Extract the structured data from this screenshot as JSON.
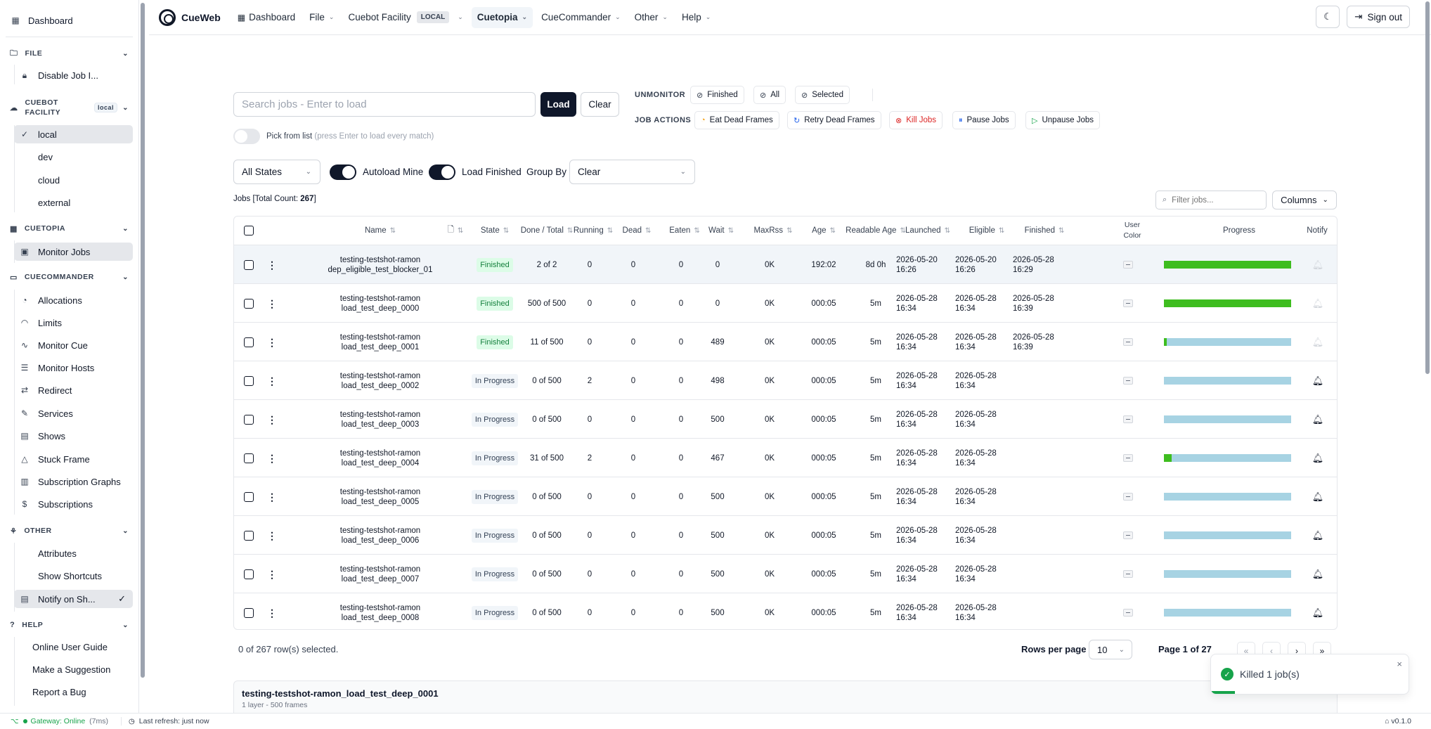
{
  "app": {
    "name": "CueWeb",
    "version": "v0.1.0"
  },
  "sidebar": {
    "dashboard": "Dashboard",
    "file": {
      "label": "FILE",
      "items": [
        "Disable Job I..."
      ]
    },
    "facility": {
      "label_line1": "CUEBOT",
      "label_line2": "FACILITY",
      "badge": "local",
      "items": [
        "local",
        "dev",
        "cloud",
        "external"
      ]
    },
    "cuetopia": {
      "label": "CUETOPIA",
      "items": [
        "Monitor Jobs"
      ]
    },
    "cuecommander": {
      "label": "CUECOMMANDER",
      "items": [
        "Allocations",
        "Limits",
        "Monitor Cue",
        "Monitor Hosts",
        "Redirect",
        "Services",
        "Shows",
        "Stuck Frame",
        "Subscription Graphs",
        "Subscriptions"
      ]
    },
    "other": {
      "label": "OTHER",
      "items": [
        "Attributes",
        "Show Shortcuts",
        "Notify on Sh..."
      ]
    },
    "help": {
      "label": "HELP",
      "items": [
        "Online User Guide",
        "Make a Suggestion",
        "Report a Bug"
      ]
    }
  },
  "topbar": {
    "dashboard": "Dashboard",
    "file": "File",
    "facility": "Cuebot Facility",
    "facility_badge": "LOCAL",
    "cuetopia": "Cuetopia",
    "cuecommander": "CueCommander",
    "other": "Other",
    "help": "Help",
    "sign_out": "Sign out"
  },
  "controls": {
    "search_placeholder": "Search jobs - Enter to load",
    "load": "Load",
    "clear": "Clear",
    "unmonitor_label": "UNMONITOR",
    "unmonitor": [
      "Finished",
      "All",
      "Selected"
    ],
    "job_actions_label": "JOB ACTIONS",
    "job_actions": [
      "Eat Dead Frames",
      "Retry Dead Frames",
      "Kill Jobs",
      "Pause Jobs",
      "Unpause Jobs"
    ],
    "pick_from_list": "Pick from list",
    "pick_hint": "(press Enter to load every match)",
    "states": "All States",
    "autoload_mine": "Autoload Mine",
    "load_finished": "Load Finished",
    "group_by_label": "Group By",
    "group_by": "Clear",
    "jobs_prefix": "Jobs [Total Count: ",
    "jobs_count": "267",
    "jobs_suffix": "]",
    "filter_placeholder": "Filter jobs...",
    "columns": "Columns"
  },
  "table": {
    "headers": {
      "name": "Name",
      "state": "State",
      "done_total": "Done / Total",
      "running": "Running",
      "dead": "Dead",
      "eaten": "Eaten",
      "wait": "Wait",
      "maxrss": "MaxRss",
      "age": "Age",
      "readable_age": "Readable Age",
      "launched": "Launched",
      "eligible": "Eligible",
      "finished": "Finished",
      "user_color_1": "User",
      "user_color_2": "Color",
      "progress": "Progress",
      "notify": "Notify"
    },
    "rows": [
      {
        "name1": "testing-testshot-ramon",
        "name2": "dep_eligible_test_blocker_01",
        "state": "Finished",
        "done": "2 of 2",
        "running": "0",
        "dead": "0",
        "eaten": "0",
        "wait": "0",
        "maxrss": "0K",
        "age": "192:02",
        "rage": "8d 0h",
        "launched1": "2026-05-20",
        "launched2": "16:26",
        "eligible1": "2026-05-20",
        "eligible2": "16:26",
        "finished1": "2026-05-28",
        "finished2": "16:29",
        "progress": 1.0
      },
      {
        "name1": "testing-testshot-ramon",
        "name2": "load_test_deep_0000",
        "state": "Finished",
        "done": "500 of 500",
        "running": "0",
        "dead": "0",
        "eaten": "0",
        "wait": "0",
        "maxrss": "0K",
        "age": "000:05",
        "rage": "5m",
        "launched1": "2026-05-28",
        "launched2": "16:34",
        "eligible1": "2026-05-28",
        "eligible2": "16:34",
        "finished1": "2026-05-28",
        "finished2": "16:39",
        "progress": 1.0
      },
      {
        "name1": "testing-testshot-ramon",
        "name2": "load_test_deep_0001",
        "state": "Finished",
        "done": "11 of 500",
        "running": "0",
        "dead": "0",
        "eaten": "0",
        "wait": "489",
        "maxrss": "0K",
        "age": "000:05",
        "rage": "5m",
        "launched1": "2026-05-28",
        "launched2": "16:34",
        "eligible1": "2026-05-28",
        "eligible2": "16:34",
        "finished1": "2026-05-28",
        "finished2": "16:39",
        "progress": 0.022
      },
      {
        "name1": "testing-testshot-ramon",
        "name2": "load_test_deep_0002",
        "state": "In Progress",
        "done": "0 of 500",
        "running": "2",
        "dead": "0",
        "eaten": "0",
        "wait": "498",
        "maxrss": "0K",
        "age": "000:05",
        "rage": "5m",
        "launched1": "2026-05-28",
        "launched2": "16:34",
        "eligible1": "2026-05-28",
        "eligible2": "16:34",
        "finished1": "",
        "finished2": "",
        "progress": 0.0
      },
      {
        "name1": "testing-testshot-ramon",
        "name2": "load_test_deep_0003",
        "state": "In Progress",
        "done": "0 of 500",
        "running": "0",
        "dead": "0",
        "eaten": "0",
        "wait": "500",
        "maxrss": "0K",
        "age": "000:05",
        "rage": "5m",
        "launched1": "2026-05-28",
        "launched2": "16:34",
        "eligible1": "2026-05-28",
        "eligible2": "16:34",
        "finished1": "",
        "finished2": "",
        "progress": 0.0
      },
      {
        "name1": "testing-testshot-ramon",
        "name2": "load_test_deep_0004",
        "state": "In Progress",
        "done": "31 of 500",
        "running": "2",
        "dead": "0",
        "eaten": "0",
        "wait": "467",
        "maxrss": "0K",
        "age": "000:05",
        "rage": "5m",
        "launched1": "2026-05-28",
        "launched2": "16:34",
        "eligible1": "2026-05-28",
        "eligible2": "16:34",
        "finished1": "",
        "finished2": "",
        "progress": 0.062
      },
      {
        "name1": "testing-testshot-ramon",
        "name2": "load_test_deep_0005",
        "state": "In Progress",
        "done": "0 of 500",
        "running": "0",
        "dead": "0",
        "eaten": "0",
        "wait": "500",
        "maxrss": "0K",
        "age": "000:05",
        "rage": "5m",
        "launched1": "2026-05-28",
        "launched2": "16:34",
        "eligible1": "2026-05-28",
        "eligible2": "16:34",
        "finished1": "",
        "finished2": "",
        "progress": 0.0
      },
      {
        "name1": "testing-testshot-ramon",
        "name2": "load_test_deep_0006",
        "state": "In Progress",
        "done": "0 of 500",
        "running": "0",
        "dead": "0",
        "eaten": "0",
        "wait": "500",
        "maxrss": "0K",
        "age": "000:05",
        "rage": "5m",
        "launched1": "2026-05-28",
        "launched2": "16:34",
        "eligible1": "2026-05-28",
        "eligible2": "16:34",
        "finished1": "",
        "finished2": "",
        "progress": 0.0
      },
      {
        "name1": "testing-testshot-ramon",
        "name2": "load_test_deep_0007",
        "state": "In Progress",
        "done": "0 of 500",
        "running": "0",
        "dead": "0",
        "eaten": "0",
        "wait": "500",
        "maxrss": "0K",
        "age": "000:05",
        "rage": "5m",
        "launched1": "2026-05-28",
        "launched2": "16:34",
        "eligible1": "2026-05-28",
        "eligible2": "16:34",
        "finished1": "",
        "finished2": "",
        "progress": 0.0
      },
      {
        "name1": "testing-testshot-ramon",
        "name2": "load_test_deep_0008",
        "state": "In Progress",
        "done": "0 of 500",
        "running": "0",
        "dead": "0",
        "eaten": "0",
        "wait": "500",
        "maxrss": "0K",
        "age": "000:05",
        "rage": "5m",
        "launched1": "2026-05-28",
        "launched2": "16:34",
        "eligible1": "2026-05-28",
        "eligible2": "16:34",
        "finished1": "",
        "finished2": "",
        "progress": 0.0
      }
    ]
  },
  "pagination": {
    "selected": "0 of 267 row(s) selected.",
    "rows_per_page_label": "Rows per page",
    "rows_per_page": "10",
    "page": "Page 1 of 27"
  },
  "detail": {
    "title": "testing-testshot-ramon_load_test_deep_0001",
    "subtitle": "1 layer - 500 frames"
  },
  "toast": {
    "message": "Killed 1 job(s)"
  },
  "status": {
    "gateway": "Gateway: Online",
    "latency": "(7ms)",
    "refresh": "Last refresh: just now"
  },
  "colors": {
    "progress_fill": "#3ebd1f",
    "progress_track": "#a7d3e3",
    "finished_badge": "#dcfce7",
    "kill_red": "#dc2626"
  }
}
